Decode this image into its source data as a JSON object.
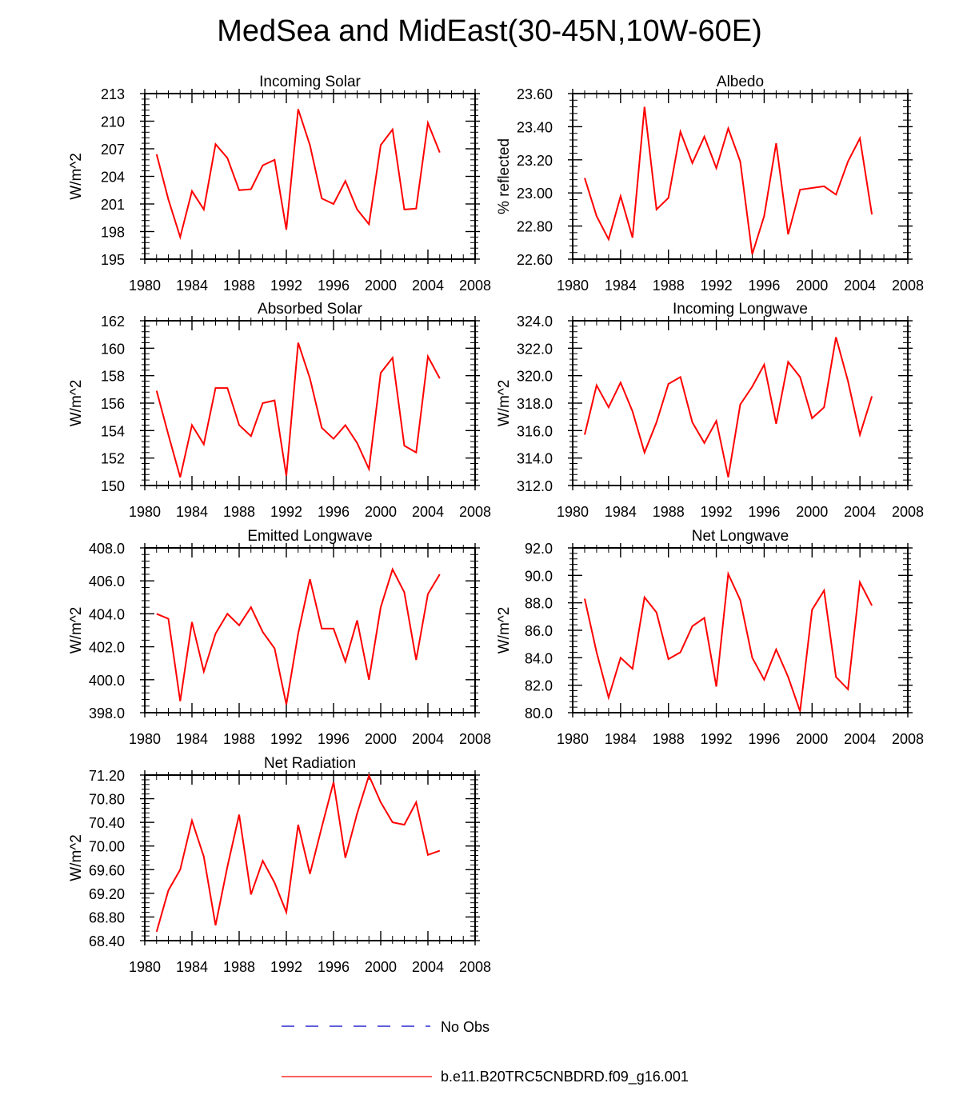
{
  "title": "MedSea and MidEast(30-45N,10W-60E)",
  "colors": {
    "model": "#ff0000",
    "obs": "#0000cc",
    "axis": "#000000"
  },
  "legend": {
    "obs_label": "No Obs",
    "model_label": "b.e11.B20TRC5CNBDRD.f09_g16.001"
  },
  "chart_data": [
    {
      "type": "line",
      "title": "Incoming Solar",
      "ylabel": "W/m^2",
      "xlim": [
        1980,
        2008
      ],
      "ylim": [
        195,
        213
      ],
      "yticks": [
        "195",
        "198",
        "201",
        "204",
        "207",
        "210",
        "213"
      ],
      "xticks": [
        "1980",
        "1984",
        "1988",
        "1992",
        "1996",
        "2000",
        "2004",
        "2008"
      ],
      "x": [
        1981,
        1982,
        1983,
        1984,
        1985,
        1986,
        1987,
        1988,
        1989,
        1990,
        1991,
        1992,
        1993,
        1994,
        1995,
        1996,
        1997,
        1998,
        1999,
        2000,
        2001,
        2002,
        2003,
        2004,
        2005
      ],
      "series": [
        {
          "name": "b.e11.B20TRC5CNBDRD.f09_g16.001",
          "values": [
            206.4,
            201.5,
            197.4,
            202.4,
            200.4,
            207.5,
            206.0,
            202.5,
            202.6,
            205.2,
            205.8,
            198.2,
            211.3,
            207.4,
            201.6,
            201.0,
            203.5,
            200.4,
            198.8,
            207.4,
            209.1,
            200.4,
            200.5,
            209.8,
            206.6
          ]
        }
      ]
    },
    {
      "type": "line",
      "title": "Albedo",
      "ylabel": "% reflected",
      "xlim": [
        1980,
        2008
      ],
      "ylim": [
        22.6,
        23.6
      ],
      "yticks": [
        "22.60",
        "22.80",
        "23.00",
        "23.20",
        "23.40",
        "23.60"
      ],
      "xticks": [
        "1980",
        "1984",
        "1988",
        "1992",
        "1996",
        "2000",
        "2004",
        "2008"
      ],
      "x": [
        1981,
        1982,
        1983,
        1984,
        1985,
        1986,
        1987,
        1988,
        1989,
        1990,
        1991,
        1992,
        1993,
        1994,
        1995,
        1996,
        1997,
        1998,
        1999,
        2000,
        2001,
        2002,
        2003,
        2004,
        2005
      ],
      "series": [
        {
          "name": "b.e11.B20TRC5CNBDRD.f09_g16.001",
          "values": [
            23.09,
            22.86,
            22.72,
            22.98,
            22.73,
            23.52,
            22.9,
            22.97,
            23.37,
            23.18,
            23.34,
            23.15,
            23.39,
            23.19,
            22.63,
            22.86,
            23.3,
            22.75,
            23.02,
            23.03,
            23.04,
            22.99,
            23.19,
            23.33,
            22.87
          ]
        }
      ]
    },
    {
      "type": "line",
      "title": "Absorbed Solar",
      "ylabel": "W/m^2",
      "xlim": [
        1980,
        2008
      ],
      "ylim": [
        150,
        162
      ],
      "yticks": [
        "150",
        "152",
        "154",
        "156",
        "158",
        "160",
        "162"
      ],
      "xticks": [
        "1980",
        "1984",
        "1988",
        "1992",
        "1996",
        "2000",
        "2004",
        "2008"
      ],
      "x": [
        1981,
        1982,
        1983,
        1984,
        1985,
        1986,
        1987,
        1988,
        1989,
        1990,
        1991,
        1992,
        1993,
        1994,
        1995,
        1996,
        1997,
        1998,
        1999,
        2000,
        2001,
        2002,
        2003,
        2004,
        2005
      ],
      "series": [
        {
          "name": "b.e11.B20TRC5CNBDRD.f09_g16.001",
          "values": [
            156.9,
            153.7,
            150.6,
            154.4,
            153.0,
            157.1,
            157.1,
            154.4,
            153.6,
            156.0,
            156.2,
            150.7,
            160.4,
            157.8,
            154.2,
            153.4,
            154.4,
            153.1,
            151.2,
            158.2,
            159.3,
            152.9,
            152.4,
            159.4,
            157.8
          ]
        }
      ]
    },
    {
      "type": "line",
      "title": "Incoming Longwave",
      "ylabel": "W/m^2",
      "xlim": [
        1980,
        2008
      ],
      "ylim": [
        312,
        324
      ],
      "yticks": [
        "312.0",
        "314.0",
        "316.0",
        "318.0",
        "320.0",
        "322.0",
        "324.0"
      ],
      "xticks": [
        "1980",
        "1984",
        "1988",
        "1992",
        "1996",
        "2000",
        "2004",
        "2008"
      ],
      "x": [
        1981,
        1982,
        1983,
        1984,
        1985,
        1986,
        1987,
        1988,
        1989,
        1990,
        1991,
        1992,
        1993,
        1994,
        1995,
        1996,
        1997,
        1998,
        1999,
        2000,
        2001,
        2002,
        2003,
        2004,
        2005
      ],
      "series": [
        {
          "name": "b.e11.B20TRC5CNBDRD.f09_g16.001",
          "values": [
            315.7,
            319.3,
            317.7,
            319.5,
            317.4,
            314.4,
            316.6,
            319.4,
            319.9,
            316.6,
            315.1,
            316.7,
            312.6,
            317.9,
            319.2,
            320.8,
            316.5,
            321.0,
            319.9,
            316.9,
            317.7,
            322.8,
            319.6,
            315.7,
            318.5
          ]
        }
      ]
    },
    {
      "type": "line",
      "title": "Emitted Longwave",
      "ylabel": "W/m^2",
      "xlim": [
        1980,
        2008
      ],
      "ylim": [
        398,
        408
      ],
      "yticks": [
        "398.0",
        "400.0",
        "402.0",
        "404.0",
        "406.0",
        "408.0"
      ],
      "xticks": [
        "1980",
        "1984",
        "1988",
        "1992",
        "1996",
        "2000",
        "2004",
        "2008"
      ],
      "x": [
        1981,
        1982,
        1983,
        1984,
        1985,
        1986,
        1987,
        1988,
        1989,
        1990,
        1991,
        1992,
        1993,
        1994,
        1995,
        1996,
        1997,
        1998,
        1999,
        2000,
        2001,
        2002,
        2003,
        2004,
        2005
      ],
      "series": [
        {
          "name": "b.e11.B20TRC5CNBDRD.f09_g16.001",
          "values": [
            404.0,
            403.7,
            398.7,
            403.5,
            400.5,
            402.8,
            404.0,
            403.3,
            404.4,
            402.9,
            401.9,
            398.5,
            402.8,
            406.1,
            403.1,
            403.1,
            401.1,
            403.6,
            400.0,
            404.4,
            406.7,
            405.3,
            401.2,
            405.2,
            406.4
          ]
        }
      ]
    },
    {
      "type": "line",
      "title": "Net Longwave",
      "ylabel": "W/m^2",
      "xlim": [
        1980,
        2008
      ],
      "ylim": [
        80,
        92
      ],
      "yticks": [
        "80.0",
        "82.0",
        "84.0",
        "86.0",
        "88.0",
        "90.0",
        "92.0"
      ],
      "xticks": [
        "1980",
        "1984",
        "1988",
        "1992",
        "1996",
        "2000",
        "2004",
        "2008"
      ],
      "x": [
        1981,
        1982,
        1983,
        1984,
        1985,
        1986,
        1987,
        1988,
        1989,
        1990,
        1991,
        1992,
        1993,
        1994,
        1995,
        1996,
        1997,
        1998,
        1999,
        2000,
        2001,
        2002,
        2003,
        2004,
        2005
      ],
      "series": [
        {
          "name": "b.e11.B20TRC5CNBDRD.f09_g16.001",
          "values": [
            88.3,
            84.4,
            81.1,
            84.0,
            83.2,
            88.4,
            87.3,
            83.9,
            84.4,
            86.3,
            86.9,
            81.9,
            90.1,
            88.2,
            84.0,
            82.4,
            84.6,
            82.6,
            80.1,
            87.5,
            88.9,
            82.6,
            81.7,
            89.5,
            87.8
          ]
        }
      ]
    },
    {
      "type": "line",
      "title": "Net Radiation",
      "ylabel": "W/m^2",
      "xlim": [
        1980,
        2008
      ],
      "ylim": [
        68.4,
        71.2
      ],
      "yticks": [
        "68.40",
        "68.80",
        "69.20",
        "69.60",
        "70.00",
        "70.40",
        "70.80",
        "71.20"
      ],
      "xticks": [
        "1980",
        "1984",
        "1988",
        "1992",
        "1996",
        "2000",
        "2004",
        "2008"
      ],
      "x": [
        1981,
        1982,
        1983,
        1984,
        1985,
        1986,
        1987,
        1988,
        1989,
        1990,
        1991,
        1992,
        1993,
        1994,
        1995,
        1996,
        1997,
        1998,
        1999,
        2000,
        2001,
        2002,
        2003,
        2004,
        2005
      ],
      "series": [
        {
          "name": "b.e11.B20TRC5CNBDRD.f09_g16.001",
          "values": [
            68.55,
            69.25,
            69.6,
            70.43,
            69.82,
            68.66,
            69.65,
            70.53,
            69.18,
            69.75,
            69.38,
            68.88,
            70.36,
            69.53,
            70.32,
            71.08,
            69.8,
            70.55,
            71.19,
            70.74,
            70.4,
            70.36,
            70.74,
            69.85,
            69.92
          ]
        }
      ]
    }
  ]
}
